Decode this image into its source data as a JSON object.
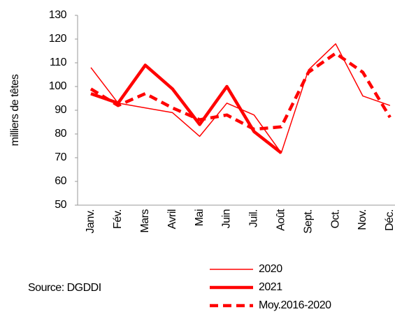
{
  "chart_data": {
    "type": "line",
    "y_label": "milliers de têtes",
    "source": "Source: DGDDI",
    "categories": [
      "Janv.",
      "Fév.",
      "Mars",
      "Avril",
      "Mai",
      "Juin",
      "Juil.",
      "Août",
      "Sept.",
      "Oct.",
      "Nov.",
      "Déc."
    ],
    "series": [
      {
        "name": "2020",
        "color": "#ff0000",
        "width": 1.5,
        "dashed": false,
        "values": [
          108,
          93,
          91,
          89,
          79,
          93,
          88,
          72,
          107,
          118,
          96,
          92
        ]
      },
      {
        "name": "2021",
        "color": "#ff0000",
        "width": 4.5,
        "dashed": false,
        "values": [
          97,
          93,
          109,
          99,
          84,
          100,
          81,
          72,
          null,
          null,
          null,
          null
        ]
      },
      {
        "name": "Moy.2016-2020",
        "color": "#ff0000",
        "width": 4.5,
        "dashed": true,
        "values": [
          99,
          92,
          97,
          91,
          86,
          88,
          82,
          83,
          106,
          114,
          106,
          87
        ]
      }
    ],
    "ylim": [
      50,
      130
    ],
    "yticks": [
      50,
      60,
      70,
      80,
      90,
      100,
      110,
      120,
      130
    ],
    "grid": false
  }
}
